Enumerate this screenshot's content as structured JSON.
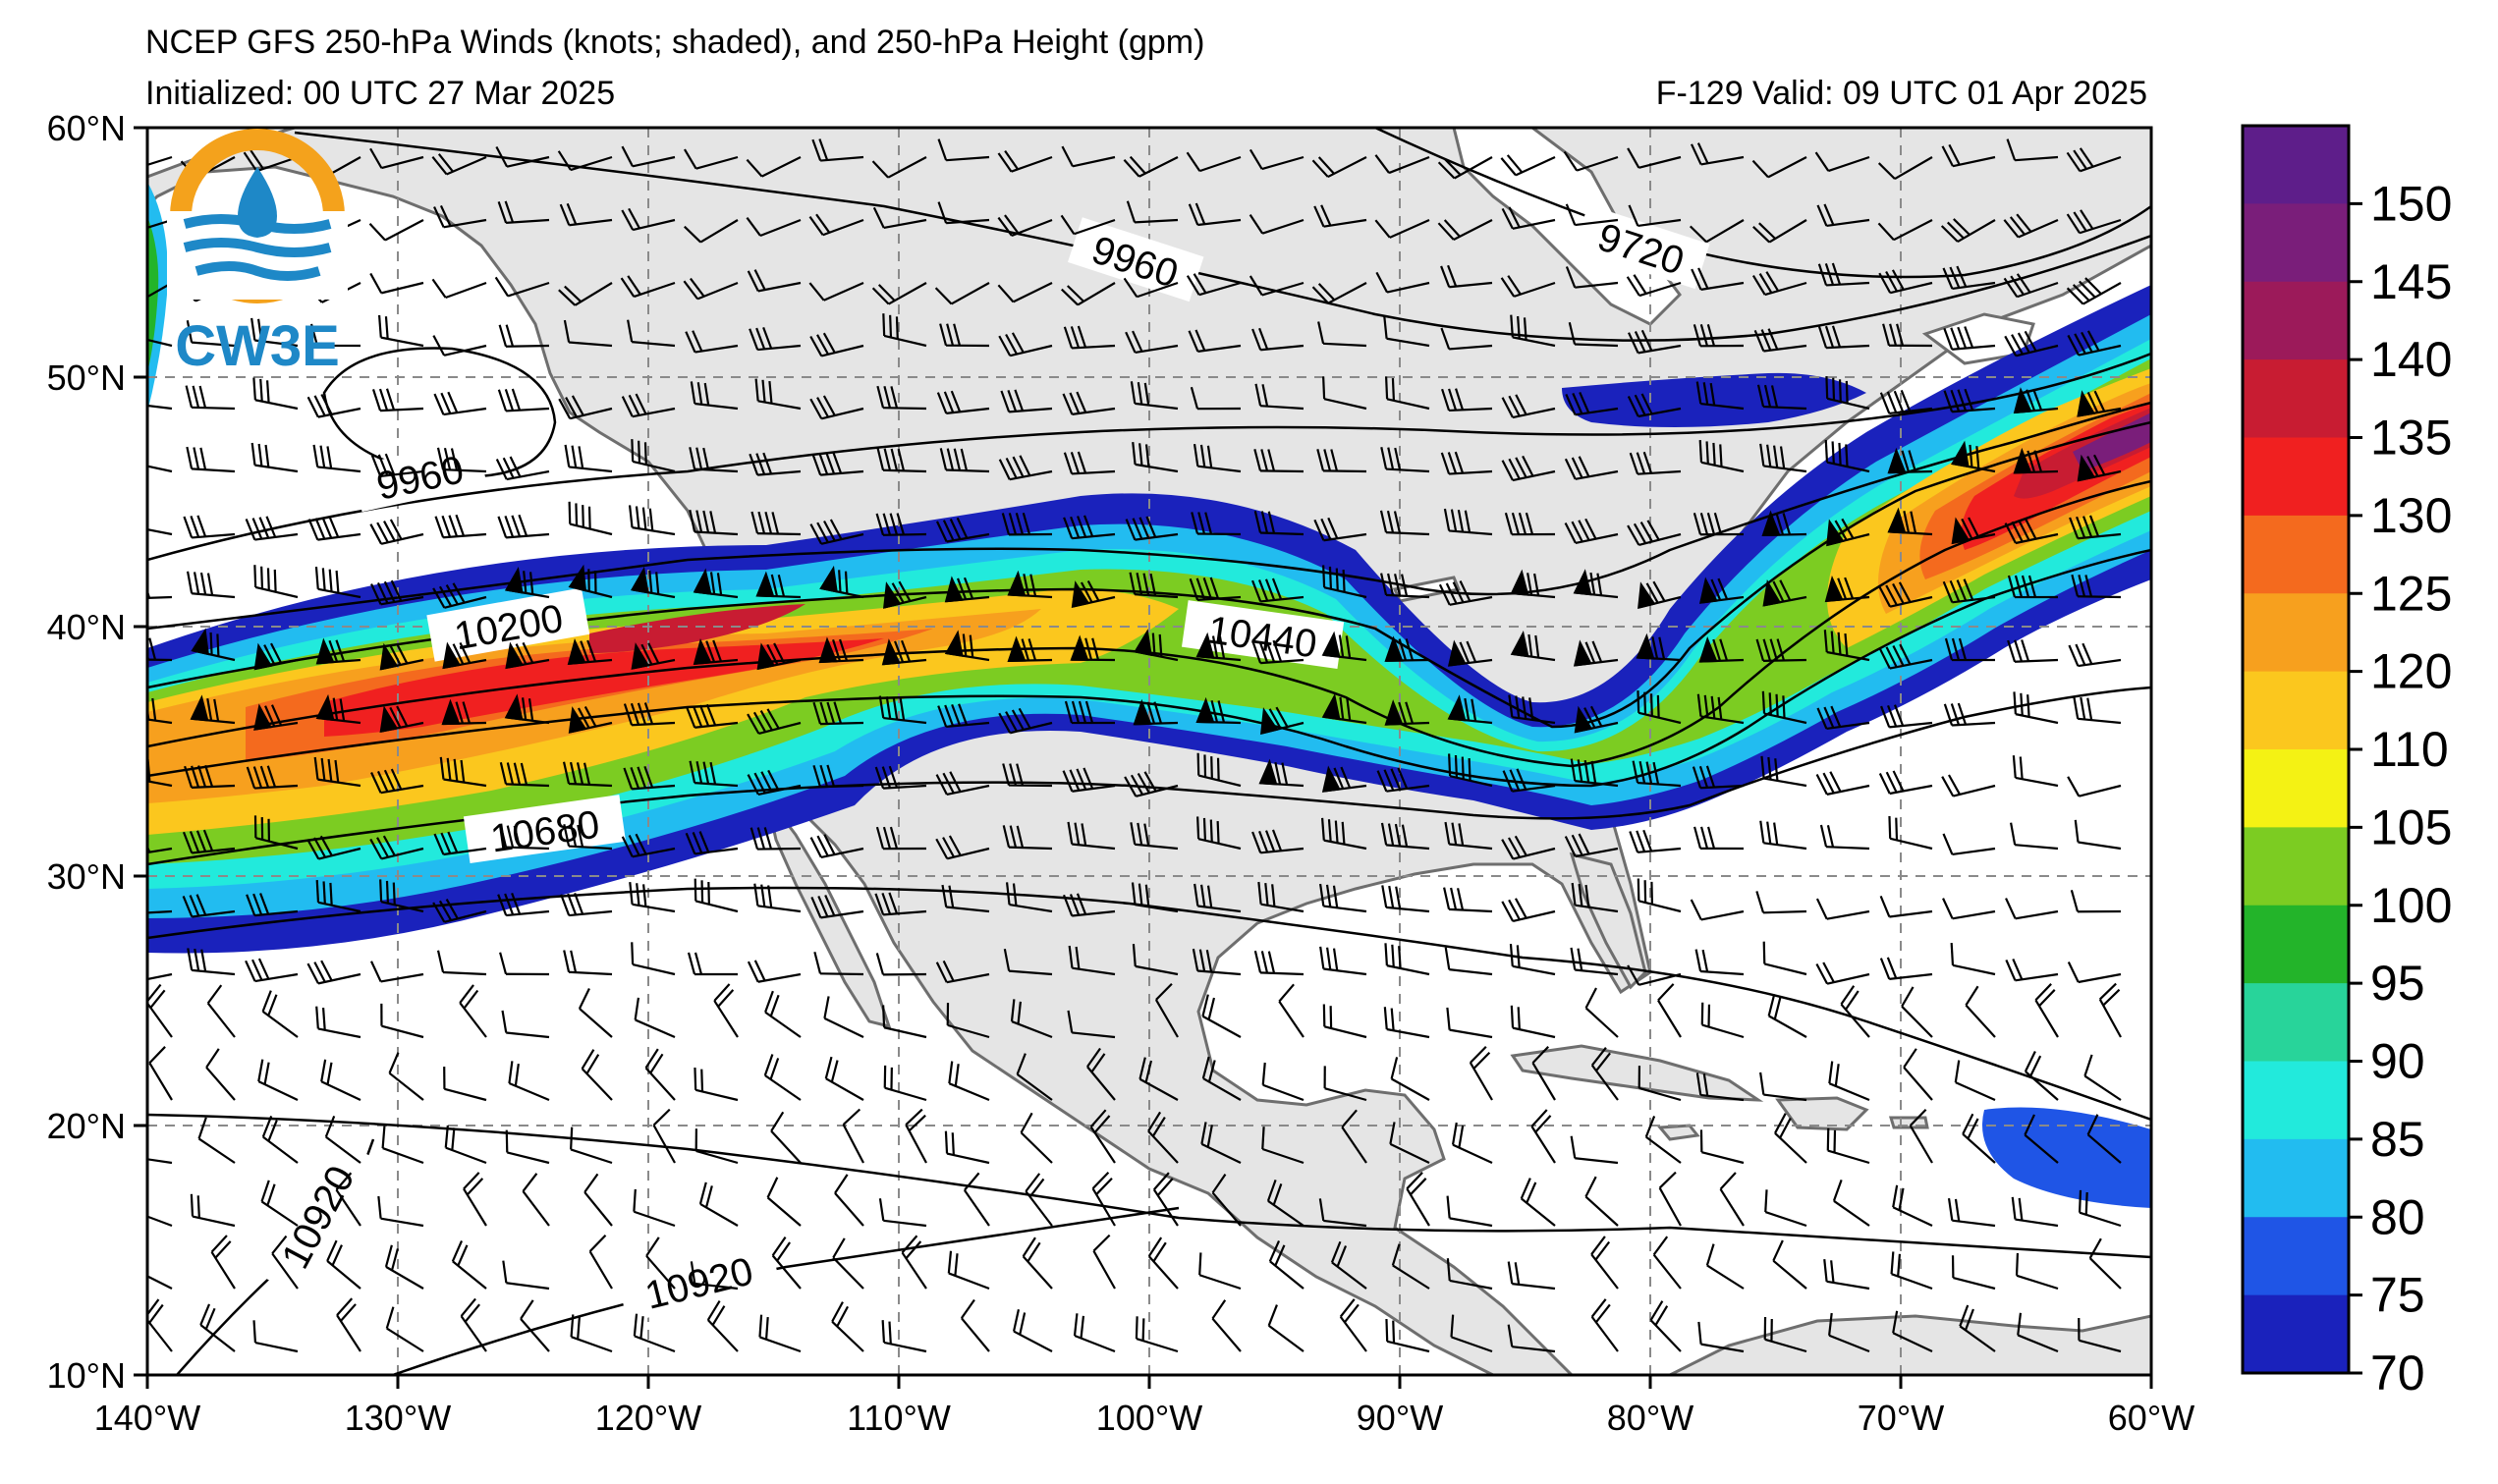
{
  "title": {
    "line1": "NCEP GFS 250-hPa Winds (knots; shaded), and 250-hPa Height (gpm)",
    "line2": "Initialized: 00 UTC 27 Mar 2025",
    "valid": "F-129  Valid: 09 UTC 01 Apr 2025"
  },
  "logo": {
    "text": "CW3E",
    "accent": "#f4a21c",
    "blue": "#1e88c7"
  },
  "axes": {
    "lon_range": [
      -140,
      -60
    ],
    "lat_range": [
      10,
      60
    ],
    "x_ticks": [
      "140°W",
      "130°W",
      "120°W",
      "110°W",
      "100°W",
      "90°W",
      "80°W",
      "70°W",
      "60°W"
    ],
    "y_ticks": [
      "60°N",
      "50°N",
      "40°N",
      "30°N",
      "20°N",
      "10°N"
    ],
    "grid": "dashed"
  },
  "colorbar": {
    "labels": [
      "150",
      "145",
      "140",
      "135",
      "130",
      "125",
      "120",
      "110",
      "105",
      "100",
      "95",
      "90",
      "85",
      "80",
      "75",
      "70"
    ],
    "colors": [
      "#5e1e8a",
      "#7a1e7a",
      "#9c1a5a",
      "#c81c32",
      "#f02020",
      "#f46a1e",
      "#f7a01e",
      "#fbc71e",
      "#f4f214",
      "#7ccc22",
      "#23b42a",
      "#28d49a",
      "#22eadc",
      "#22bcf0",
      "#1f55e6",
      "#1a22bc"
    ]
  },
  "contours": {
    "labels": [
      "9960",
      "9720",
      "9960",
      "10200",
      "10440",
      "10680",
      "10920",
      "10920"
    ]
  },
  "colors": {
    "land": "#e5e5e5",
    "coast": "#6e6e6e",
    "contour": "#000000"
  }
}
